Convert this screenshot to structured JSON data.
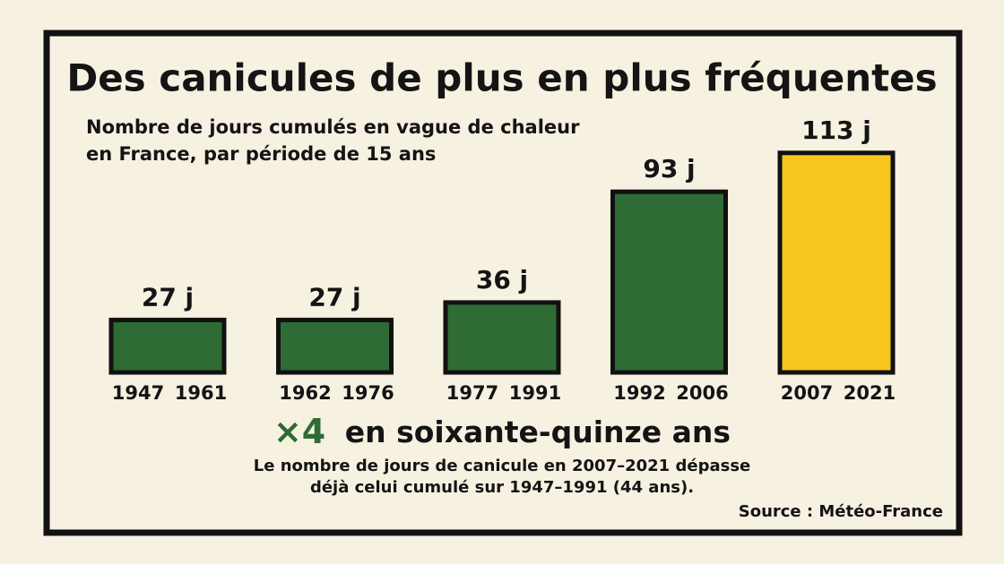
{
  "chart_data": {
    "type": "bar",
    "title": "Des canicules de plus en plus fréquentes",
    "subtitle": [
      "Nombre de jours cumulés en vague de chaleur",
      "en France, par période de 15 ans"
    ],
    "categories": [
      [
        "1947",
        "1961"
      ],
      [
        "1962",
        "1976"
      ],
      [
        "1977",
        "1991"
      ],
      [
        "1992",
        "2006"
      ],
      [
        "2007",
        "2021"
      ]
    ],
    "values": [
      27,
      27,
      36,
      93,
      113
    ],
    "value_labels": [
      "27 j",
      "27 j",
      "36 j",
      "93 j",
      "113 j"
    ],
    "colors": [
      "#2f6b34",
      "#2f6b34",
      "#2f6b34",
      "#2f6b34",
      "#f6c61c"
    ],
    "annotation": {
      "highlight": "×4",
      "text": "en soixante-quinze ans",
      "highlight_color": "#2f6b34"
    },
    "note": [
      "Le nombre de jours de canicule en 2007–2021 dépasse",
      "déjà celui cumulé sur 1947–1991 (44 ans)."
    ],
    "source": "Source : Météo-France"
  }
}
